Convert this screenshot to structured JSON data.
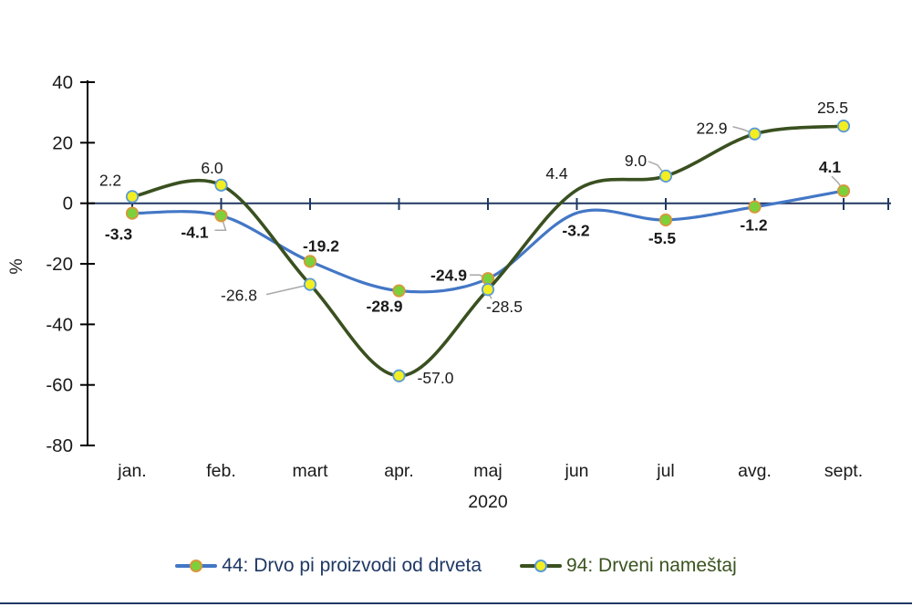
{
  "chart_data": {
    "type": "line",
    "title": "",
    "ylabel": "%",
    "xlabel": "2020",
    "categories": [
      "jan.",
      "feb.",
      "mart",
      "apr.",
      "maj",
      "jun",
      "jul",
      "avg.",
      "sept."
    ],
    "y_ticks": [
      40,
      20,
      0,
      -20,
      -40,
      -60,
      -80
    ],
    "ylim": [
      -80,
      40
    ],
    "grid": false,
    "legend_position": "bottom",
    "series": [
      {
        "name": "44: Drvo pi proizvodi od drveta",
        "line_color": "#4377C6",
        "marker_fill": "#7CD13B",
        "marker_stroke": "#D9973B",
        "text_color": "#1F3864",
        "bold_labels": true,
        "values": [
          -3.3,
          -4.1,
          -19.2,
          -28.9,
          -24.9,
          -3.2,
          -5.5,
          -1.2,
          4.1
        ],
        "labels": [
          "-3.3",
          "-4.1",
          "-19.2",
          "-28.9",
          "-24.9",
          "-3.2",
          "-5.5",
          "-1.2",
          "4.1"
        ],
        "hidden_markers": [
          5
        ],
        "label_offsets": [
          [
            -15,
            23
          ],
          [
            -29,
            18
          ],
          [
            12,
            -17
          ],
          [
            -16,
            17
          ],
          [
            -43,
            -4
          ],
          [
            -1,
            19
          ],
          [
            -4,
            20
          ],
          [
            -1,
            20
          ],
          [
            -15,
            -26
          ]
        ],
        "leaders": [
          null,
          [
            [
              -7,
              16
            ],
            [
              5,
              16
            ]
          ],
          null,
          null,
          [
            [
              -20,
              -4
            ],
            [
              -9,
              -4
            ]
          ],
          null,
          null,
          null,
          [
            [
              -13,
              -16
            ],
            [
              -6,
              -9
            ]
          ]
        ]
      },
      {
        "name": "94: Drveni nameštaj",
        "line_color": "#3A5020",
        "marker_fill": "#F2EE22",
        "marker_stroke": "#5B9BD5",
        "text_color": "#3A5420",
        "bold_labels": false,
        "values": [
          2.2,
          6.0,
          -26.8,
          -57.0,
          -28.5,
          4.4,
          9.0,
          22.9,
          25.5
        ],
        "labels": [
          "2.2",
          "6.0",
          "-26.8",
          "-57.0",
          "-28.5",
          "4.4",
          "9.0",
          "22.9",
          "25.5"
        ],
        "hidden_markers": [
          5
        ],
        "label_offsets": [
          [
            -24,
            -18
          ],
          [
            -10,
            -19
          ],
          [
            -78,
            12
          ],
          [
            40,
            2
          ],
          [
            18,
            19
          ],
          [
            -22,
            -18
          ],
          [
            -33,
            -17
          ],
          [
            -47,
            -6
          ],
          [
            -12,
            -20
          ]
        ],
        "leaders": [
          null,
          null,
          [
            [
              -48,
              11
            ],
            [
              -13,
              3
            ]
          ],
          null,
          [
            [
              4,
              10
            ],
            [
              1,
              5
            ]
          ],
          null,
          [
            [
              -19,
              -16
            ],
            [
              -9,
              -12
            ]
          ],
          [
            [
              -24,
              -8
            ],
            [
              -13,
              -5
            ]
          ],
          null
        ]
      }
    ]
  },
  "colors": {
    "axis": "#000000",
    "zero_line": "#203864",
    "leader": "#A9A9A9",
    "bottom_rule": "#203864",
    "label": "#1a1a1a"
  }
}
